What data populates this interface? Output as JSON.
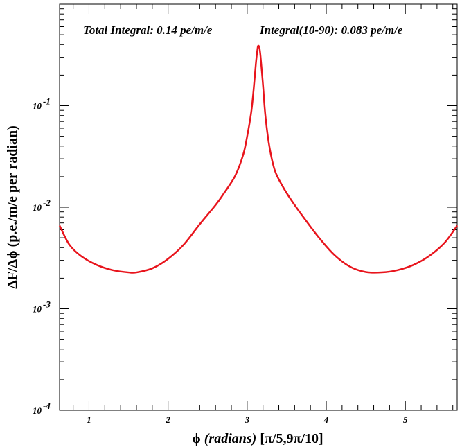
{
  "chart_data": {
    "type": "line",
    "xlabel_parts": {
      "symbol": "ϕ",
      "italic": " (radians)",
      "rest": " [π/5,9π/10]"
    },
    "ylabel": "ΔF/Δϕ (p.e./m/e per radian)",
    "annotations": [
      "Total Integral: 0.14 pe/m/e",
      "Integral(10-90): 0.083 pe/m/e"
    ],
    "xlim": [
      0.628,
      5.655
    ],
    "ylim": [
      0.0001,
      1
    ],
    "yscale": "log",
    "x_ticks": [
      {
        "value": 1,
        "label": "1"
      },
      {
        "value": 2,
        "label": "2"
      },
      {
        "value": 3,
        "label": "3"
      },
      {
        "value": 4,
        "label": "4"
      },
      {
        "value": 5,
        "label": "5"
      }
    ],
    "y_ticks": [
      {
        "value": 0.1,
        "base": "10",
        "exp": "-1"
      },
      {
        "value": 0.01,
        "base": "10",
        "exp": "-2"
      },
      {
        "value": 0.001,
        "base": "10",
        "exp": "-3"
      },
      {
        "value": 0.0001,
        "base": "10",
        "exp": "-4"
      }
    ],
    "series": [
      {
        "color": "#e8141c",
        "x": [
          0.628,
          0.75,
          0.9,
          1.1,
          1.3,
          1.5,
          1.6,
          1.8,
          2.0,
          2.2,
          2.4,
          2.6,
          2.7,
          2.85,
          2.95,
          3.0,
          3.05,
          3.08,
          3.11,
          3.13,
          3.14,
          3.155,
          3.17,
          3.2,
          3.23,
          3.28,
          3.35,
          3.45,
          3.55,
          3.7,
          3.9,
          4.1,
          4.3,
          4.5,
          4.7,
          4.9,
          5.1,
          5.3,
          5.5,
          5.655
        ],
        "y": [
          0.0066,
          0.0043,
          0.0033,
          0.0027,
          0.0024,
          0.00228,
          0.00228,
          0.0025,
          0.0031,
          0.0043,
          0.0068,
          0.0105,
          0.0135,
          0.0205,
          0.033,
          0.05,
          0.085,
          0.14,
          0.26,
          0.36,
          0.39,
          0.37,
          0.3,
          0.16,
          0.08,
          0.04,
          0.023,
          0.016,
          0.012,
          0.0082,
          0.0051,
          0.0034,
          0.0026,
          0.0023,
          0.00228,
          0.0024,
          0.0027,
          0.0033,
          0.0045,
          0.0066
        ]
      }
    ],
    "grid": false,
    "legend": "none"
  }
}
